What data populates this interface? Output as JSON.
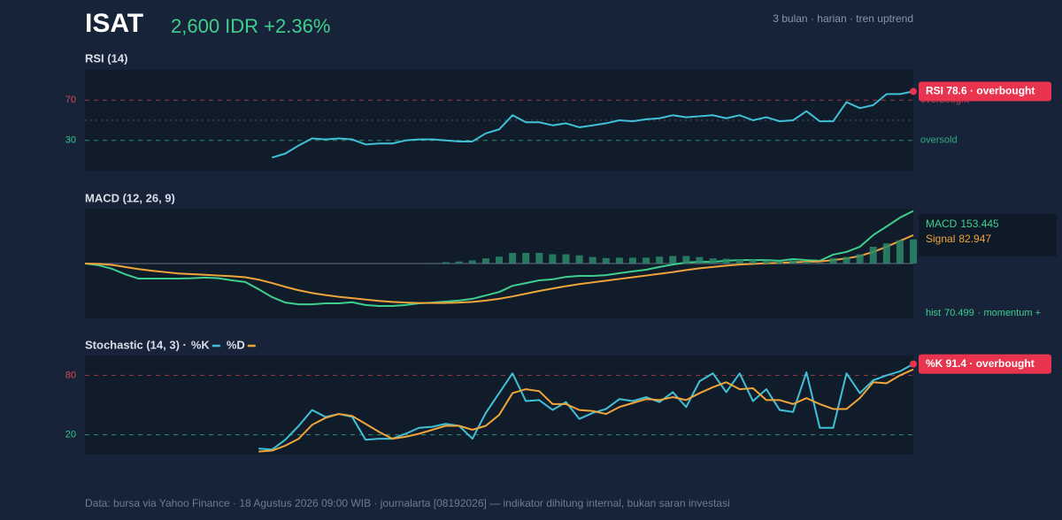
{
  "header": {
    "ticker": "ISAT",
    "quote": "2,600 IDR +2.36%",
    "meta": "3 bulan · harian · tren uptrend"
  },
  "chart_data": [
    {
      "type": "line",
      "title": "RSI (14)",
      "ylim": [
        0,
        100
      ],
      "yticks": [
        70,
        30
      ],
      "tick_colors": [
        "#d9475a",
        "#36c48a"
      ],
      "right_labels": [
        "overbought",
        "oversold"
      ],
      "midline": 50,
      "badge": "RSI 78.6 · overbought",
      "series": [
        {
          "name": "RSI",
          "color": "#3fc1d6",
          "values": [
            null,
            null,
            null,
            null,
            null,
            null,
            null,
            null,
            null,
            null,
            null,
            null,
            null,
            null,
            13,
            17,
            25,
            32,
            31,
            32,
            31,
            26,
            27,
            27,
            30,
            31,
            31,
            30,
            29,
            29,
            37,
            41,
            55,
            48,
            48,
            45,
            47,
            43,
            45,
            47,
            50,
            49,
            51,
            52,
            55,
            53,
            54,
            55,
            52,
            55,
            50,
            53,
            49,
            50,
            59,
            49,
            49,
            68,
            62,
            65,
            76,
            76,
            78.6
          ]
        }
      ]
    },
    {
      "type": "line",
      "title": "MACD (12, 26, 9)",
      "ylim": [
        -160,
        160
      ],
      "legend": "box",
      "hist_note": "· momentum +",
      "series": [
        {
          "name": "MACD",
          "color": "#3ecf8e",
          "values": [
            0,
            -5,
            -15,
            -31,
            -44,
            -44,
            -44,
            -44,
            -43,
            -41,
            -43,
            -49,
            -54,
            -75,
            -98,
            -114,
            -119,
            -119,
            -116,
            -116,
            -113,
            -121,
            -124,
            -124,
            -121,
            -116,
            -114,
            -111,
            -108,
            -103,
            -93,
            -83,
            -65,
            -57,
            -49,
            -46,
            -39,
            -36,
            -36,
            -34,
            -28,
            -23,
            -18,
            -10,
            -3,
            3,
            5,
            5,
            8,
            10,
            10,
            10,
            8,
            13,
            10,
            8,
            26,
            34,
            49,
            83,
            108,
            134,
            153.445
          ]
        },
        {
          "name": "Signal",
          "color": "#f0a53a",
          "values": [
            0,
            -1,
            -4,
            -10,
            -16,
            -21,
            -25,
            -29,
            -31,
            -33,
            -35,
            -37,
            -40,
            -47,
            -57,
            -68,
            -78,
            -86,
            -92,
            -97,
            -101,
            -105,
            -109,
            -112,
            -114,
            -115,
            -115,
            -115,
            -114,
            -112,
            -108,
            -103,
            -96,
            -88,
            -80,
            -73,
            -66,
            -60,
            -55,
            -50,
            -45,
            -40,
            -35,
            -30,
            -25,
            -19,
            -14,
            -10,
            -6,
            -3,
            -1,
            1,
            2,
            4,
            5,
            6,
            10,
            15,
            22,
            34,
            49,
            66,
            82.947
          ]
        },
        {
          "name": "hist",
          "type": "bar",
          "color": "#2a8a68",
          "values": [
            null,
            null,
            null,
            null,
            null,
            null,
            null,
            null,
            null,
            null,
            null,
            null,
            null,
            null,
            null,
            null,
            null,
            null,
            null,
            null,
            null,
            null,
            null,
            null,
            null,
            null,
            1,
            4,
            6,
            9,
            15,
            20,
            31,
            31,
            31,
            27,
            27,
            24,
            19,
            16,
            17,
            17,
            17,
            20,
            22,
            22,
            19,
            15,
            14,
            13,
            11,
            9,
            6,
            9,
            5,
            2,
            16,
            19,
            27,
            49,
            59,
            68,
            70.499
          ]
        }
      ]
    },
    {
      "type": "line",
      "title": "Stochastic (14, 3) ·",
      "ylim": [
        0,
        100
      ],
      "yticks": [
        80,
        20
      ],
      "tick_colors": [
        "#d9475a",
        "#36c48a"
      ],
      "legend": "inline",
      "badge": "%K 91.4 · overbought",
      "series": [
        {
          "name": "%K",
          "color": "#3fc1d6",
          "values": [
            null,
            null,
            null,
            null,
            null,
            null,
            null,
            null,
            null,
            null,
            null,
            null,
            null,
            6,
            5,
            15,
            29,
            45,
            38,
            41,
            38,
            15,
            16,
            16,
            21,
            27,
            28,
            31,
            29,
            16,
            42,
            62,
            82,
            54,
            55,
            45,
            53,
            36,
            42,
            46,
            56,
            54,
            58,
            53,
            63,
            48,
            74,
            82,
            63,
            82,
            54,
            66,
            45,
            43,
            83,
            27,
            27,
            82,
            62,
            75,
            80,
            84,
            91.4
          ]
        },
        {
          "name": "%D",
          "color": "#f0a53a",
          "values": [
            null,
            null,
            null,
            null,
            null,
            null,
            null,
            null,
            null,
            null,
            null,
            null,
            null,
            3,
            4,
            9,
            16,
            30,
            37,
            41,
            39,
            31,
            23,
            16,
            18,
            21,
            25,
            29,
            29,
            25,
            29,
            40,
            62,
            66,
            64,
            51,
            51,
            45,
            44,
            41,
            48,
            52,
            56,
            55,
            58,
            55,
            62,
            68,
            73,
            66,
            67,
            55,
            55,
            51,
            57,
            51,
            46,
            46,
            57,
            73,
            72,
            80,
            86
          ]
        }
      ]
    }
  ],
  "footer": "Data: bursa via Yahoo Finance · 18 Agustus 2026 09:00 WIB · journalarta [08192026] — indikator dihitung internal, bukan saran investasi"
}
